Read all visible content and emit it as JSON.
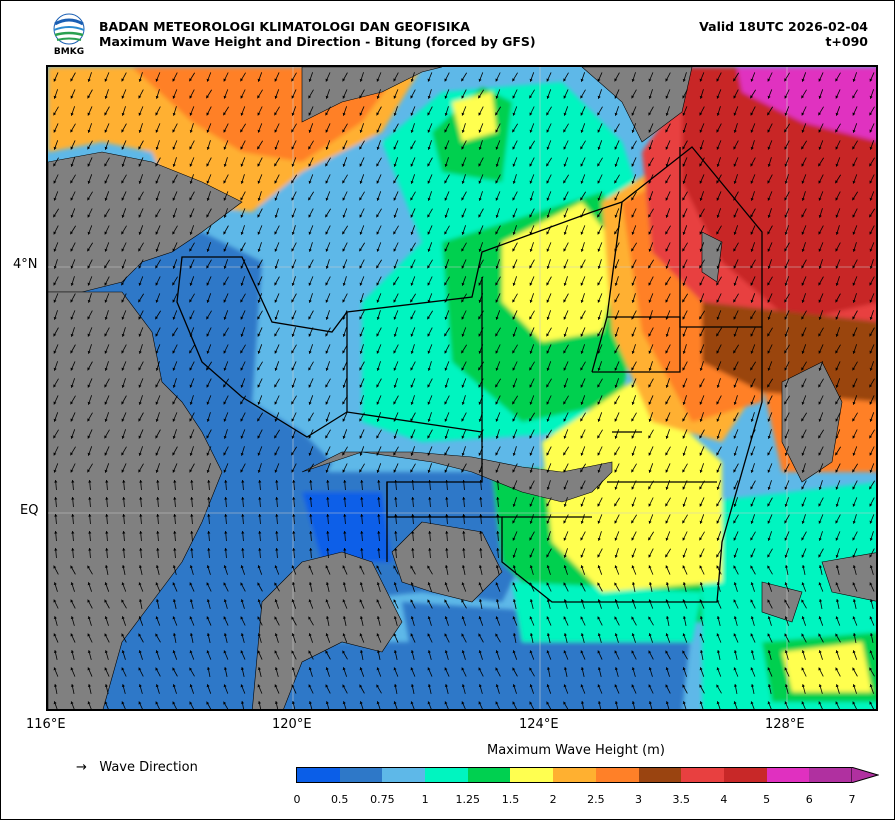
{
  "header": {
    "agency": "BADAN METEOROLOGI KLIMATOLOGI DAN GEOFISIKA",
    "subtitle": "Maximum Wave Height and Direction - Bitung (forced by GFS)",
    "valid": "Valid 18UTC 2026-02-04",
    "lead": "t+090",
    "logo_text": "BMKG"
  },
  "map": {
    "lat_labels": [
      "4°N",
      "EQ"
    ],
    "lon_labels": [
      "116°E",
      "120°E",
      "124°E",
      "128°E"
    ],
    "land_color": "#808080",
    "grid": true
  },
  "legend": {
    "arrow_symbol": "→",
    "direction_label": "Wave Direction",
    "colorbar_title": "Maximum Wave Height (m)",
    "ticks": [
      "0",
      "0.5",
      "0.75",
      "1",
      "1.25",
      "1.5",
      "2",
      "2.5",
      "3",
      "3.5",
      "4",
      "5",
      "6",
      "7"
    ],
    "colors": [
      "#0a5ee8",
      "#2e78c8",
      "#5eb8e8",
      "#00f5c0",
      "#00d050",
      "#ffff50",
      "#ffb030",
      "#ff8028",
      "#9a4410",
      "#e84040",
      "#c82828",
      "#e030c0",
      "#b030a0"
    ]
  }
}
